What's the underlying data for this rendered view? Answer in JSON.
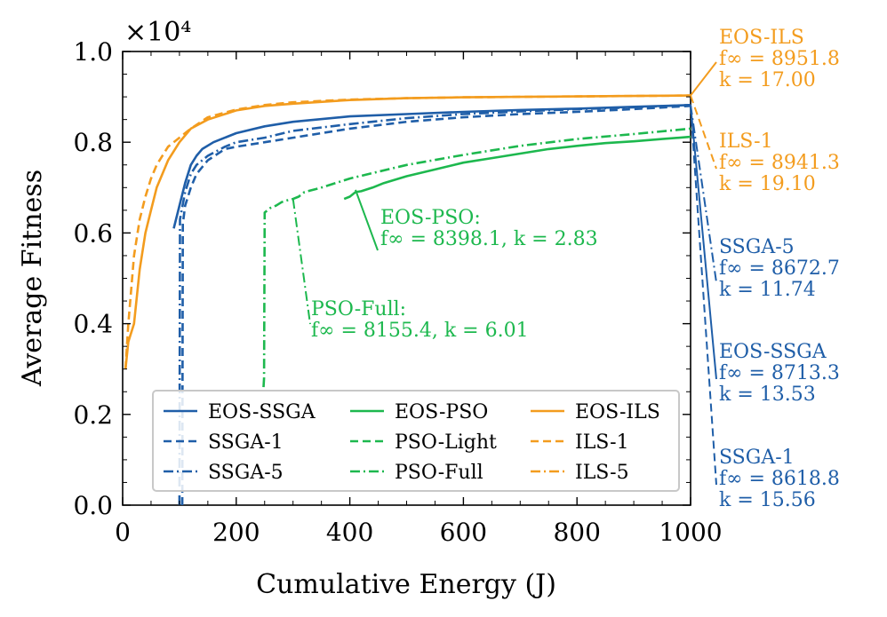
{
  "chart_data": {
    "type": "line",
    "xlabel": "Cumulative Energy (J)",
    "ylabel": "Average Fitness",
    "y_scale_label": "×10⁴",
    "xlim": [
      0,
      1000
    ],
    "ylim": [
      0.0,
      1.0
    ],
    "x_ticks": [
      "0",
      "200",
      "400",
      "600",
      "800",
      "1000"
    ],
    "y_ticks": [
      "0.0",
      "0.2",
      "0.4",
      "0.6",
      "0.8",
      "1.0"
    ],
    "grid": false,
    "legend_position": "bottom-center",
    "colors": {
      "blue": "#1f5ea8",
      "green": "#1db84e",
      "orange": "#f39c1e"
    },
    "series": [
      {
        "name": "EOS-SSGA",
        "color": "#1f5ea8",
        "dash": "solid",
        "x": [
          90,
          100,
          110,
          120,
          130,
          140,
          160,
          180,
          200,
          250,
          300,
          400,
          500,
          600,
          700,
          800,
          900,
          1000
        ],
        "y": [
          0.61,
          0.66,
          0.71,
          0.75,
          0.77,
          0.785,
          0.8,
          0.81,
          0.82,
          0.835,
          0.845,
          0.857,
          0.862,
          0.867,
          0.871,
          0.874,
          0.878,
          0.882
        ]
      },
      {
        "name": "SSGA-1",
        "color": "#1f5ea8",
        "dash": "dash",
        "x": [
          105,
          106,
          110,
          120,
          130,
          150,
          180,
          200,
          250,
          300,
          400,
          500,
          600,
          700,
          800,
          900,
          1000
        ],
        "y": [
          0.0,
          0.62,
          0.66,
          0.7,
          0.73,
          0.76,
          0.785,
          0.79,
          0.8,
          0.81,
          0.83,
          0.845,
          0.855,
          0.862,
          0.867,
          0.873,
          0.88
        ]
      },
      {
        "name": "SSGA-5",
        "color": "#1f5ea8",
        "dash": "dashdot",
        "x": [
          100,
          101,
          110,
          120,
          130,
          150,
          180,
          200,
          250,
          300,
          400,
          500,
          600,
          700,
          800,
          900,
          1000
        ],
        "y": [
          0.0,
          0.63,
          0.69,
          0.73,
          0.75,
          0.77,
          0.79,
          0.8,
          0.81,
          0.825,
          0.84,
          0.853,
          0.862,
          0.868,
          0.873,
          0.877,
          0.882
        ]
      },
      {
        "name": "EOS-PSO",
        "color": "#1db84e",
        "dash": "solid",
        "x": [
          390,
          400,
          410,
          420,
          440,
          460,
          500,
          550,
          600,
          650,
          700,
          750,
          800,
          850,
          900,
          950,
          1000
        ],
        "y": [
          0.675,
          0.68,
          0.69,
          0.692,
          0.7,
          0.71,
          0.725,
          0.74,
          0.755,
          0.765,
          0.775,
          0.785,
          0.792,
          0.798,
          0.802,
          0.807,
          0.812
        ]
      },
      {
        "name": "PSO-Light",
        "color": "#1db84e",
        "dash": "dash",
        "x": [],
        "y": []
      },
      {
        "name": "PSO-Full",
        "color": "#1db84e",
        "dash": "dashdot",
        "x": [
          248,
          249,
          250,
          260,
          270,
          280,
          290,
          300,
          310,
          320,
          350,
          400,
          450,
          500,
          600,
          700,
          800,
          900,
          1000
        ],
        "y": [
          0.26,
          0.28,
          0.645,
          0.655,
          0.66,
          0.668,
          0.672,
          0.675,
          0.68,
          0.69,
          0.7,
          0.72,
          0.735,
          0.75,
          0.772,
          0.792,
          0.807,
          0.818,
          0.83
        ]
      },
      {
        "name": "EOS-ILS",
        "color": "#f39c1e",
        "dash": "solid",
        "x": [
          5,
          10,
          20,
          30,
          40,
          50,
          60,
          70,
          80,
          100,
          120,
          150,
          200,
          250,
          300,
          400,
          500,
          600,
          700,
          800,
          900,
          1000
        ],
        "y": [
          0.3,
          0.36,
          0.4,
          0.52,
          0.6,
          0.65,
          0.7,
          0.73,
          0.76,
          0.8,
          0.83,
          0.85,
          0.87,
          0.88,
          0.885,
          0.893,
          0.897,
          0.899,
          0.9,
          0.901,
          0.902,
          0.903
        ]
      },
      {
        "name": "ILS-1",
        "color": "#f39c1e",
        "dash": "dash",
        "x": [
          5,
          10,
          20,
          30,
          40,
          50,
          60,
          80,
          100,
          120,
          150,
          200,
          250,
          300,
          400,
          500,
          600,
          700,
          800,
          900,
          1000
        ],
        "y": [
          0.3,
          0.4,
          0.55,
          0.63,
          0.68,
          0.72,
          0.75,
          0.79,
          0.81,
          0.83,
          0.855,
          0.872,
          0.882,
          0.888,
          0.894,
          0.897,
          0.899,
          0.9,
          0.901,
          0.902,
          0.903
        ]
      },
      {
        "name": "ILS-5",
        "color": "#f39c1e",
        "dash": "dashdot",
        "x": [],
        "y": []
      }
    ],
    "annotations": [
      {
        "color": "#f39c1e",
        "lines": [
          "EOS-ILS",
          "f∞ = 8951.8",
          "k = 17.00"
        ]
      },
      {
        "color": "#f39c1e",
        "lines": [
          "ILS-1",
          "f∞ = 8941.3",
          "k = 19.10"
        ]
      },
      {
        "color": "#1f5ea8",
        "lines": [
          "SSGA-5",
          "f∞ = 8672.7",
          "k = 11.74"
        ]
      },
      {
        "color": "#1f5ea8",
        "lines": [
          "EOS-SSGA",
          "f∞ = 8713.3",
          "k = 13.53"
        ]
      },
      {
        "color": "#1f5ea8",
        "lines": [
          "SSGA-1",
          "f∞ = 8618.8",
          "k = 15.56"
        ]
      },
      {
        "color": "#1db84e",
        "lines": [
          "EOS-PSO:",
          "f∞ = 8398.1, k = 2.83"
        ]
      },
      {
        "color": "#1db84e",
        "lines": [
          "PSO-Full:",
          "f∞ = 8155.4, k = 6.01"
        ]
      }
    ]
  }
}
